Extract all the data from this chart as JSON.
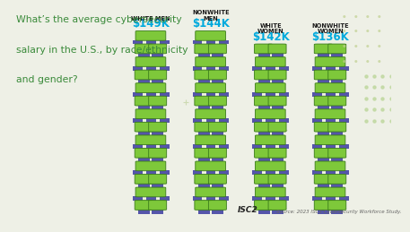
{
  "title_line1": "What’s the average cybersecurity",
  "title_line2": "salary in the U.S., by race/ethnicity",
  "title_line3": "and gender?",
  "categories": [
    "WHITE MEN",
    "NONWHITE\nMEN",
    "WHITE\nWOMEN",
    "NONWHITE\nWOMEN"
  ],
  "values": [
    149,
    144,
    142,
    136
  ],
  "labels": [
    "$149K",
    "$144K",
    "$142K",
    "$136K"
  ],
  "bg_color": "#eef0e6",
  "title_color": "#3a8a3a",
  "label_color": "#00aadd",
  "cat_color": "#1a1a1a",
  "bar_green": "#7ec83a",
  "bar_blue": "#5555aa",
  "bar_dark_green": "#3a7a1a",
  "source_text": "Source: 2023 ISC2 Cybersecurity Workforce Study.",
  "isc2_text": "ISC2",
  "max_val": 149
}
